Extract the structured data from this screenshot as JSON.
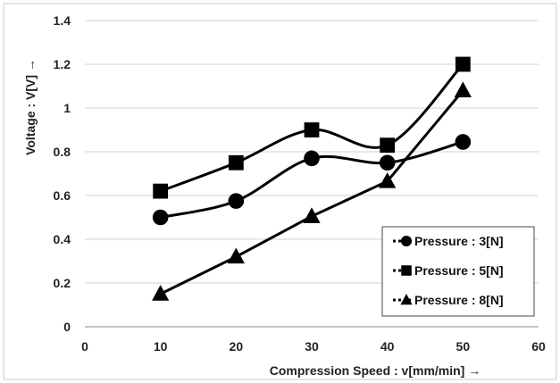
{
  "chart_data": {
    "type": "line",
    "title": "",
    "xlabel": "Compression Speed : v[mm/min] →",
    "ylabel": "Voltage : V[V] →",
    "xlim": [
      0,
      60
    ],
    "ylim": [
      0,
      1.4
    ],
    "x_ticks": [
      "0",
      "10",
      "20",
      "30",
      "40",
      "50",
      "60"
    ],
    "y_ticks": [
      "0",
      "0.2",
      "0.4",
      "0.6",
      "0.8",
      "1",
      "1.2",
      "1.4"
    ],
    "grid": "horizontal",
    "legend_position": "bottom-right",
    "series": [
      {
        "name": "Pressure : 3[N]",
        "marker": "circle",
        "x": [
          10,
          20,
          30,
          40,
          50
        ],
        "values": [
          0.5,
          0.575,
          0.77,
          0.75,
          0.845
        ]
      },
      {
        "name": "Pressure : 5[N]",
        "marker": "square",
        "x": [
          10,
          20,
          30,
          40,
          50
        ],
        "values": [
          0.62,
          0.75,
          0.9,
          0.83,
          1.2
        ]
      },
      {
        "name": "Pressure : 8[N]",
        "marker": "triangle",
        "x": [
          10,
          20,
          30,
          40,
          50
        ],
        "values": [
          0.15,
          0.32,
          0.505,
          0.665,
          1.08
        ]
      }
    ],
    "colors": {
      "line": "#000000",
      "grid": "#d0d0d0",
      "frame": "#c8c8c8"
    }
  }
}
